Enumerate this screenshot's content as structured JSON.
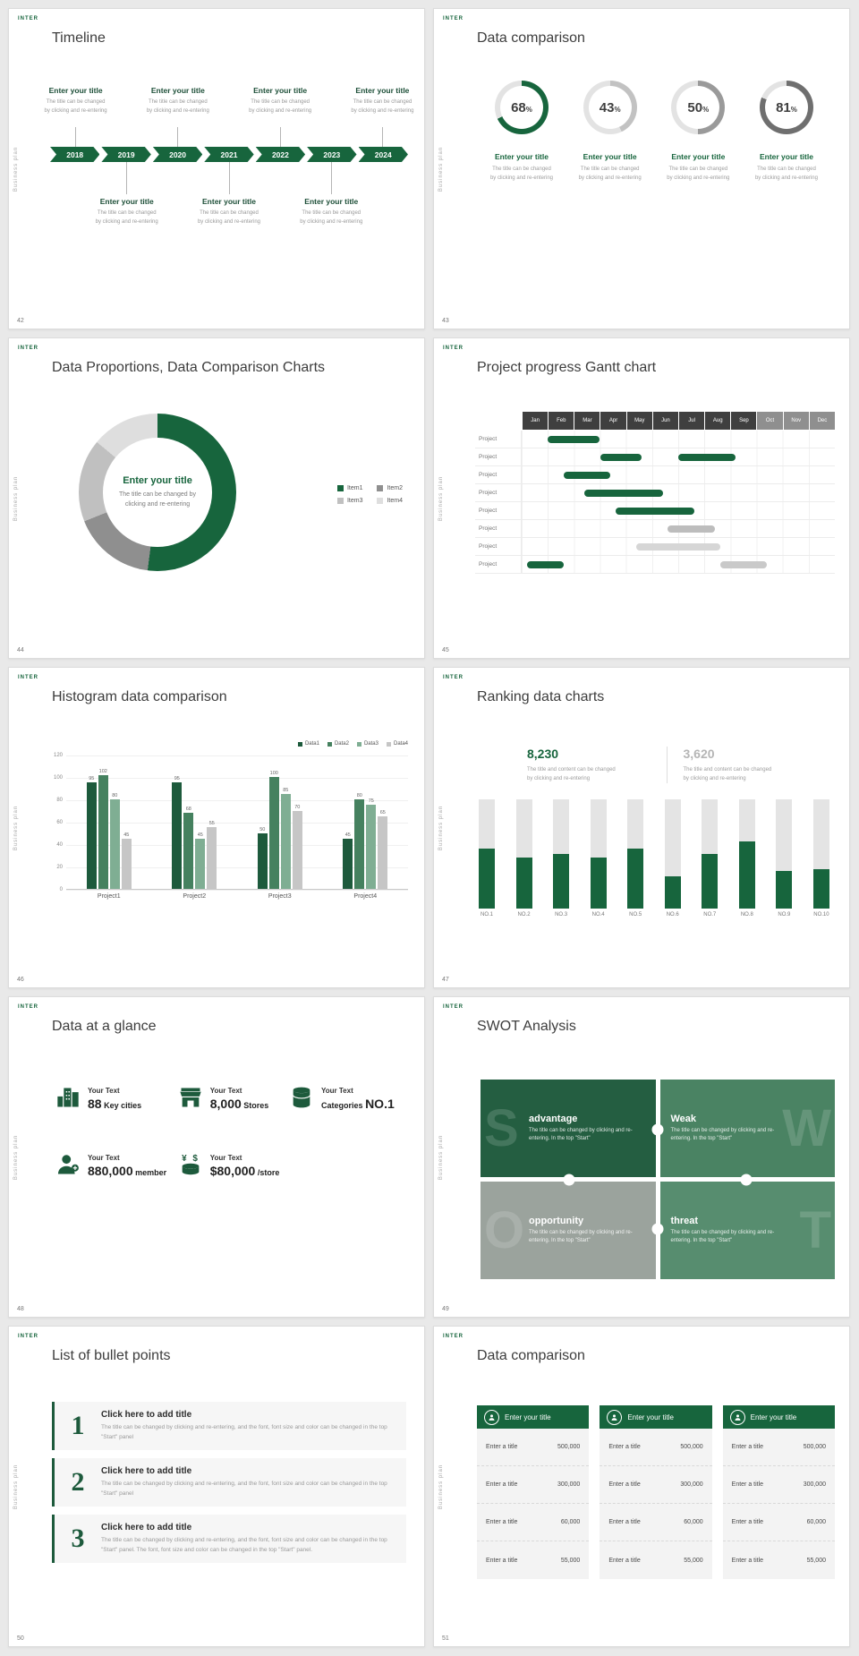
{
  "theme": {
    "accent": "#17653d",
    "accent_dark": "#1d4f38",
    "gray_text": "#8a8a8a"
  },
  "logo": "INTER",
  "side_label": "Business plan",
  "slides": [
    {
      "number": "42",
      "title": "Timeline",
      "years": [
        "2018",
        "2019",
        "2020",
        "2021",
        "2022",
        "2023",
        "2024"
      ],
      "top_entries": [
        0,
        2,
        4,
        6
      ],
      "bottom_entries": [
        1,
        3,
        5
      ],
      "entry_title": "Enter your title",
      "entry_lines": [
        "The title can be changed",
        "by clicking and re-entering"
      ]
    },
    {
      "number": "43",
      "title": "Data comparison",
      "item_title": "Enter your title",
      "item_lines": [
        "The title can be changed",
        "by clicking and re-entering"
      ],
      "chart_data": {
        "type": "donut-rings",
        "values": [
          68,
          43,
          50,
          81
        ],
        "colors": [
          "#17653d",
          "#c2c2c2",
          "#9a9a9a",
          "#6f6f6f"
        ],
        "track_color": "#e3e3e3"
      }
    },
    {
      "number": "44",
      "title": "Data Proportions, Data Comparison Charts",
      "center_title": "Enter your title",
      "center_lines": [
        "The title can be changed by",
        "clicking and re-entering"
      ],
      "chart_data": {
        "type": "pie",
        "series": [
          {
            "name": "Item1",
            "value": 52,
            "color": "#17653d"
          },
          {
            "name": "Item2",
            "value": 17,
            "color": "#8f8f8f"
          },
          {
            "name": "Item3",
            "value": 17,
            "color": "#c0c0c0"
          },
          {
            "name": "Item4",
            "value": 14,
            "color": "#dedede"
          }
        ]
      }
    },
    {
      "number": "45",
      "title": "Project progress Gantt chart",
      "chart_data": {
        "type": "gantt",
        "months": [
          "Jan",
          "Feb",
          "Mar",
          "Apr",
          "May",
          "Jun",
          "Jul",
          "Aug",
          "Sep",
          "Oct",
          "Nov",
          "Dec"
        ],
        "light_header_from": 9,
        "rows": [
          {
            "label": "Project",
            "bars": [
              {
                "start": 1.0,
                "end": 3.0,
                "color": "#17653d"
              }
            ]
          },
          {
            "label": "Project",
            "bars": [
              {
                "start": 3.0,
                "end": 4.6,
                "color": "#17653d"
              },
              {
                "start": 6.0,
                "end": 8.2,
                "color": "#17653d"
              }
            ]
          },
          {
            "label": "Project",
            "bars": [
              {
                "start": 1.6,
                "end": 3.4,
                "color": "#17653d"
              }
            ]
          },
          {
            "label": "Project",
            "bars": [
              {
                "start": 2.4,
                "end": 5.4,
                "color": "#17653d"
              }
            ]
          },
          {
            "label": "Project",
            "bars": [
              {
                "start": 3.6,
                "end": 6.6,
                "color": "#17653d"
              }
            ]
          },
          {
            "label": "Project",
            "bars": [
              {
                "start": 5.6,
                "end": 7.4,
                "color": "#bdbdbd"
              }
            ]
          },
          {
            "label": "Project",
            "bars": [
              {
                "start": 4.4,
                "end": 7.6,
                "color": "#d6d6d6"
              }
            ]
          },
          {
            "label": "Project",
            "bars": [
              {
                "start": 0.2,
                "end": 1.6,
                "color": "#17653d"
              },
              {
                "start": 7.6,
                "end": 9.4,
                "color": "#c9c9c9"
              }
            ]
          }
        ]
      }
    },
    {
      "number": "46",
      "title": "Histogram data comparison",
      "chart_data": {
        "type": "bar",
        "categories": [
          "Project1",
          "Project2",
          "Project3",
          "Project4"
        ],
        "series": [
          {
            "name": "Data1",
            "color": "#1d5a3c",
            "values": [
              95,
              95,
              50,
              45
            ]
          },
          {
            "name": "Data2",
            "color": "#45815f",
            "values": [
              102,
              68,
              100,
              80
            ]
          },
          {
            "name": "Data3",
            "color": "#7fae93",
            "values": [
              80,
              45,
              85,
              75
            ]
          },
          {
            "name": "Data4",
            "color": "#c6c6c6",
            "values": [
              45,
              55,
              70,
              65
            ]
          }
        ],
        "ylim": [
          0,
          120
        ],
        "yticks": [
          0,
          20,
          40,
          60,
          80,
          100,
          120
        ]
      }
    },
    {
      "number": "47",
      "title": "Ranking data charts",
      "stats": [
        {
          "value": "8,230",
          "color": "#17653d",
          "lines": [
            "The title and content can be changed",
            "by clicking and re-entering"
          ]
        },
        {
          "value": "3,620",
          "color": "#b5b5b5",
          "lines": [
            "The title and content can be changed",
            "by clicking and re-entering"
          ]
        }
      ],
      "chart_data": {
        "type": "bar",
        "categories": [
          "NO.1",
          "NO.2",
          "NO.3",
          "NO.4",
          "NO.5",
          "NO.6",
          "NO.7",
          "NO.8",
          "NO.9",
          "NO.10"
        ],
        "values": [
          55,
          47,
          50,
          47,
          55,
          30,
          50,
          62,
          35,
          36
        ],
        "max": 100,
        "bar_color": "#17653d",
        "track_color": "#e4e4e4"
      }
    },
    {
      "number": "48",
      "title": "Data at a glance",
      "items": [
        {
          "icon": "buildings-icon",
          "label": "Your Text",
          "prefix": "",
          "value": "88",
          "unit": "Key cities"
        },
        {
          "icon": "store-icon",
          "label": "Your Text",
          "prefix": "",
          "value": "8,000",
          "unit": "Stores"
        },
        {
          "icon": "database-icon",
          "label": "Your Text",
          "prefix": "Categories",
          "value": "NO.1",
          "unit": ""
        },
        {
          "icon": "member-icon",
          "label": "Your Text",
          "prefix": "",
          "value": "880,000",
          "unit": "member"
        },
        {
          "icon": "coins-icon",
          "label": "Your Text",
          "prefix": "",
          "value": "$80,000",
          "unit": "/store"
        }
      ]
    },
    {
      "number": "49",
      "title": "SWOT Analysis",
      "pieces": [
        {
          "letter": "S",
          "title": "advantage",
          "color": "#245e41",
          "side": "left",
          "text": "The title can be changed by clicking and re-entering. In the top \"Start\""
        },
        {
          "letter": "W",
          "title": "Weak",
          "color": "#4a8363",
          "side": "right",
          "text": "The title can be changed by clicking and re-entering. In the top \"Start\""
        },
        {
          "letter": "O",
          "title": "opportunity",
          "color": "#9ba39d",
          "side": "left",
          "text": "The title can be changed by clicking and re-entering. In the top \"Start\""
        },
        {
          "letter": "T",
          "title": "threat",
          "color": "#578d6f",
          "side": "right",
          "text": "The title can be changed by clicking and re-entering. In the top \"Start\""
        }
      ]
    },
    {
      "number": "50",
      "title": "List of bullet points",
      "items": [
        {
          "num": "1",
          "title": "Click here to add title",
          "text": "The title can be changed by clicking and re-entering, and the font, font size and color can be changed in the top \"Start\" panel"
        },
        {
          "num": "2",
          "title": "Click here to add title",
          "text": "The title can be changed by clicking and re-entering, and the font, font size and color can be changed in the top \"Start\" panel"
        },
        {
          "num": "3",
          "title": "Click here to add title",
          "text": "The title can be changed by clicking and re-entering, and the font, font size and color can be changed in the top \"Start\" panel. The font, font size and color can be changed in the top \"Start\" panel."
        }
      ]
    },
    {
      "number": "51",
      "title": "Data comparison",
      "tables": [
        {
          "icon": "person-icon",
          "title": "Enter your title",
          "rows": [
            {
              "label": "Enter a title",
              "value": "500,000"
            },
            {
              "label": "Enter a title",
              "value": "300,000"
            },
            {
              "label": "Enter a title",
              "value": "60,000"
            },
            {
              "label": "Enter a title",
              "value": "55,000"
            }
          ]
        },
        {
          "icon": "person-icon",
          "title": "Enter your title",
          "rows": [
            {
              "label": "Enter a title",
              "value": "500,000"
            },
            {
              "label": "Enter a title",
              "value": "300,000"
            },
            {
              "label": "Enter a title",
              "value": "60,000"
            },
            {
              "label": "Enter a title",
              "value": "55,000"
            }
          ]
        },
        {
          "icon": "person-icon",
          "title": "Enter your title",
          "rows": [
            {
              "label": "Enter a title",
              "value": "500,000"
            },
            {
              "label": "Enter a title",
              "value": "300,000"
            },
            {
              "label": "Enter a title",
              "value": "60,000"
            },
            {
              "label": "Enter a title",
              "value": "55,000"
            }
          ]
        }
      ]
    }
  ]
}
